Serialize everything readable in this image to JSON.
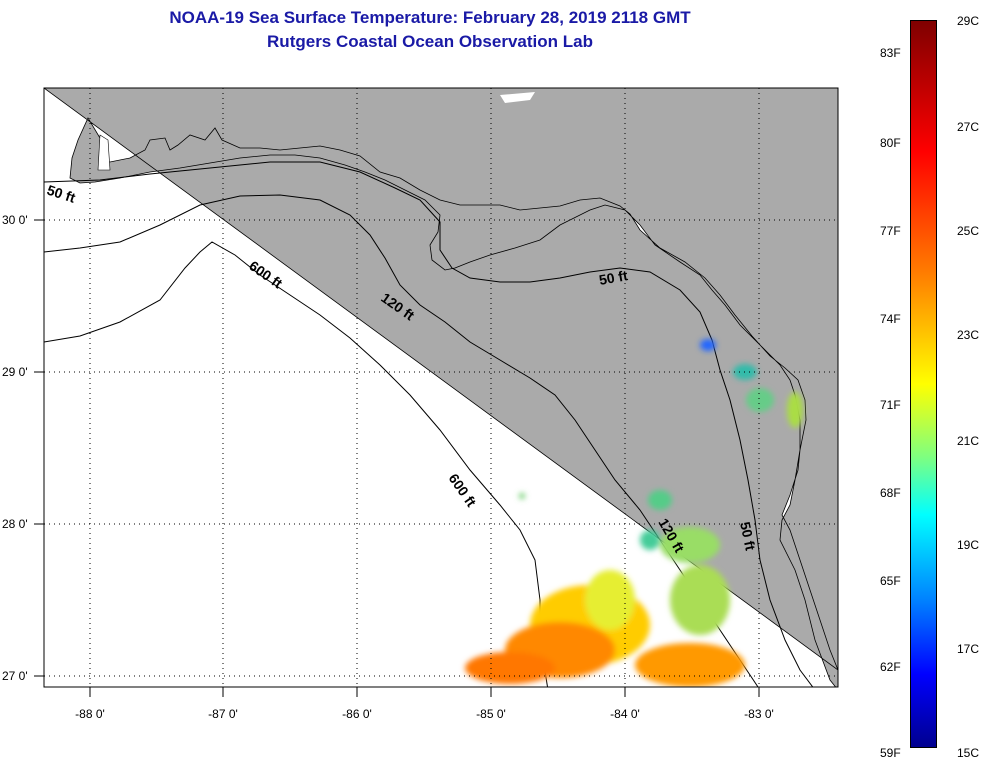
{
  "title_line1": "NOAA-19 Sea Surface Temperature:  February 28, 2019 2118 GMT",
  "title_line2": "Rutgers Coastal Ocean Observation Lab",
  "lon_labels": [
    "-88 0'",
    "-87 0'",
    "-86 0'",
    "-85 0'",
    "-84 0'",
    "-83 0'"
  ],
  "lat_labels": [
    "30 0'",
    "29 0'",
    "28 0'",
    "27 0'"
  ],
  "contour_labels": [
    "50 ft",
    "600 ft",
    "120 ft",
    "50 ft",
    "600 ft",
    "120 ft",
    "50 ft"
  ],
  "colorbar": {
    "fahrenheit": [
      "83F",
      "80F",
      "77F",
      "74F",
      "71F",
      "68F",
      "65F",
      "62F",
      "59F"
    ],
    "celsius": [
      "29C",
      "27C",
      "25C",
      "23C",
      "21C",
      "19C",
      "17C",
      "15C"
    ]
  },
  "colors": {
    "land": "#aaaaaa",
    "water": "#ffffff",
    "title": "#1a1aa6"
  }
}
